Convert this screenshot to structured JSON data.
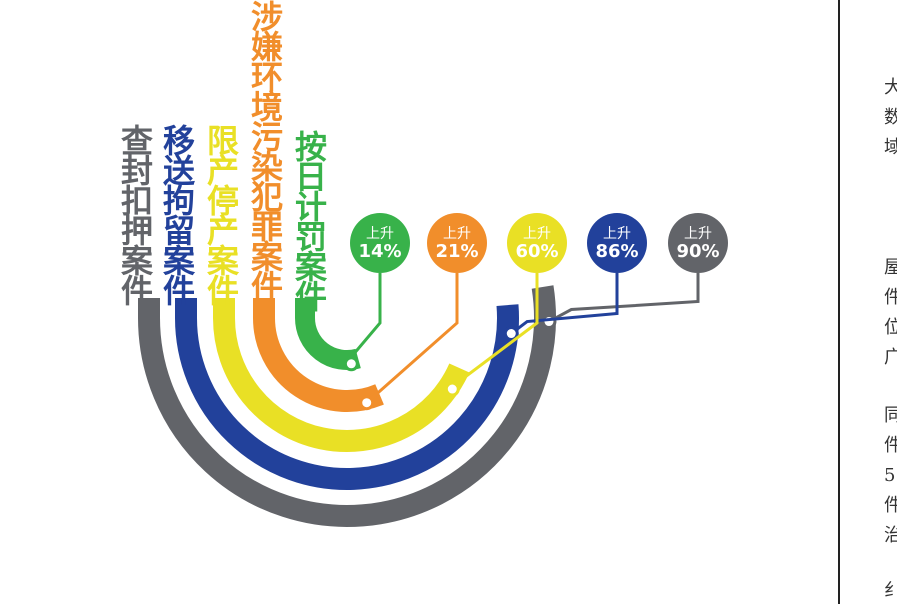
{
  "chart_data": {
    "type": "radial-bar",
    "series": [
      {
        "label": "查封扣押案件",
        "badge_top": "上升",
        "value": 90,
        "value_text": "90%",
        "color": "#626469"
      },
      {
        "label": "移送拘留案件",
        "badge_top": "上升",
        "value": 86,
        "value_text": "86%",
        "color": "#22419b"
      },
      {
        "label": "限产停产案件",
        "badge_top": "上升",
        "value": 60,
        "value_text": "60%",
        "color": "#e9e025"
      },
      {
        "label": "涉嫌环境污染犯罪案件",
        "badge_top": "上升",
        "value": 21,
        "value_text": "21%",
        "color": "#f18e2b"
      },
      {
        "label": "按日计罚案件",
        "badge_top": "上升",
        "value": 14,
        "value_text": "14%",
        "color": "#38b24a"
      }
    ]
  },
  "side_text": [
    "大",
    "数",
    "域",
    "屋",
    "件",
    "位",
    "广",
    "同",
    "件",
    "5",
    "件",
    "治",
    "纟"
  ]
}
